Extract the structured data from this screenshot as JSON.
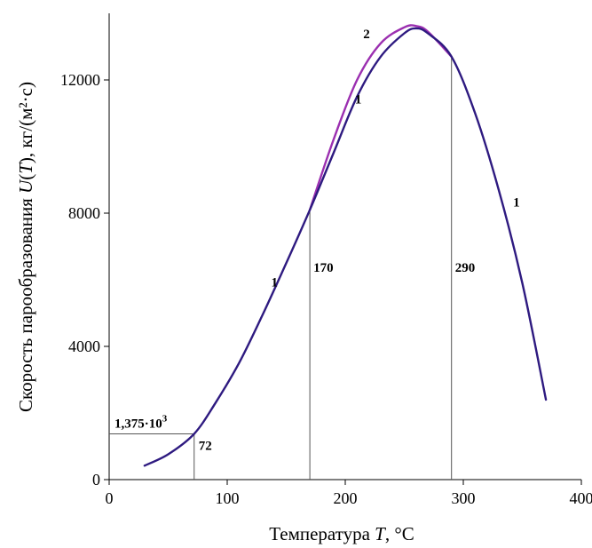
{
  "chart_data": {
    "type": "line",
    "xlabel": "Температура T, °C",
    "xlabel_parts": {
      "prefix": "Температура ",
      "var": "T",
      "suffix": ", °C"
    },
    "ylabel": "Скорость парообразования U(T), кг/(м²·с)",
    "ylabel_parts": {
      "prefix": "Скорость парообразования ",
      "var1": "U",
      "paren_open": "(",
      "var2": "T",
      "paren_close": ")",
      "suffix": ",  кг/(м²·с)"
    },
    "xlim": [
      0,
      400
    ],
    "ylim": [
      0,
      14000
    ],
    "x_ticks": [
      0,
      100,
      200,
      300,
      400
    ],
    "y_ticks": [
      0,
      4000,
      8000,
      12000
    ],
    "x_tick_labels": [
      "0",
      "100",
      "200",
      "300",
      "400"
    ],
    "y_tick_labels": [
      "0",
      "4000",
      "8000",
      "12000"
    ],
    "grid": false,
    "series": [
      {
        "name": "1",
        "color": "#2e1a80",
        "x": [
          30,
          50,
          72,
          90,
          110,
          130,
          150,
          170,
          190,
          210,
          230,
          250,
          260,
          270,
          290,
          310,
          330,
          350,
          370
        ],
        "y": [
          420,
          760,
          1375,
          2300,
          3500,
          4950,
          6500,
          8100,
          9800,
          11500,
          12700,
          13400,
          13550,
          13400,
          12700,
          11000,
          8700,
          5900,
          2400
        ]
      },
      {
        "name": "2",
        "color": "#9b2fb0",
        "x": [
          170,
          190,
          210,
          230,
          250,
          260,
          270,
          290
        ],
        "y": [
          8100,
          10200,
          12000,
          13100,
          13580,
          13620,
          13450,
          12700
        ]
      }
    ],
    "curve_labels": [
      {
        "text": "1",
        "x": 140,
        "y": 5800
      },
      {
        "text": "1",
        "x": 211,
        "y": 11300
      },
      {
        "text": "1",
        "x": 345,
        "y": 8200
      },
      {
        "text": "2",
        "x": 218,
        "y": 13250
      }
    ],
    "reference_lines": [
      {
        "x": 72,
        "y": 1375,
        "x_label": "72",
        "y_label_base": "1,375·10",
        "y_label_exp": "3"
      },
      {
        "x": 170,
        "y": 8100,
        "x_label": "170"
      },
      {
        "x": 290,
        "y": 12700,
        "x_label": "290"
      }
    ]
  }
}
